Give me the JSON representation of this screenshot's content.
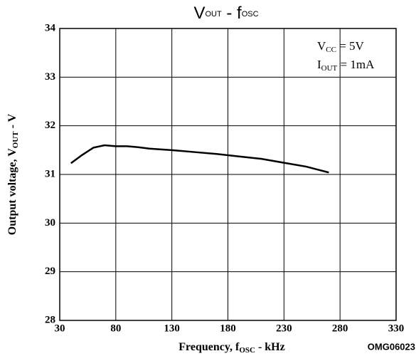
{
  "chart_data": {
    "type": "line",
    "title": [
      "V",
      "OUT",
      " - f",
      "OSC"
    ],
    "x_label": [
      "Frequency, f",
      "OSC",
      " - kHz"
    ],
    "y_label": [
      "Output voltage, V",
      "OUT",
      " - V"
    ],
    "annotations": [
      [
        "V",
        "CC",
        " = 5V"
      ],
      [
        "I",
        "OUT",
        " = 1mA"
      ]
    ],
    "figure_id": "OMG06023",
    "x": [
      40,
      50,
      60,
      70,
      80,
      90,
      100,
      110,
      130,
      150,
      170,
      190,
      210,
      230,
      250,
      260,
      270
    ],
    "series": [
      {
        "color": "#000000",
        "values": [
          31.23,
          31.4,
          31.55,
          31.6,
          31.58,
          31.58,
          31.56,
          31.53,
          31.5,
          31.46,
          31.42,
          31.37,
          31.32,
          31.24,
          31.16,
          31.1,
          31.04
        ]
      }
    ],
    "xlim": [
      30,
      330
    ],
    "xticks": [
      30,
      80,
      130,
      180,
      230,
      280,
      330
    ],
    "ylim": [
      28,
      34
    ],
    "yticks": [
      28,
      29,
      30,
      31,
      32,
      33,
      34
    ],
    "grid": true
  }
}
